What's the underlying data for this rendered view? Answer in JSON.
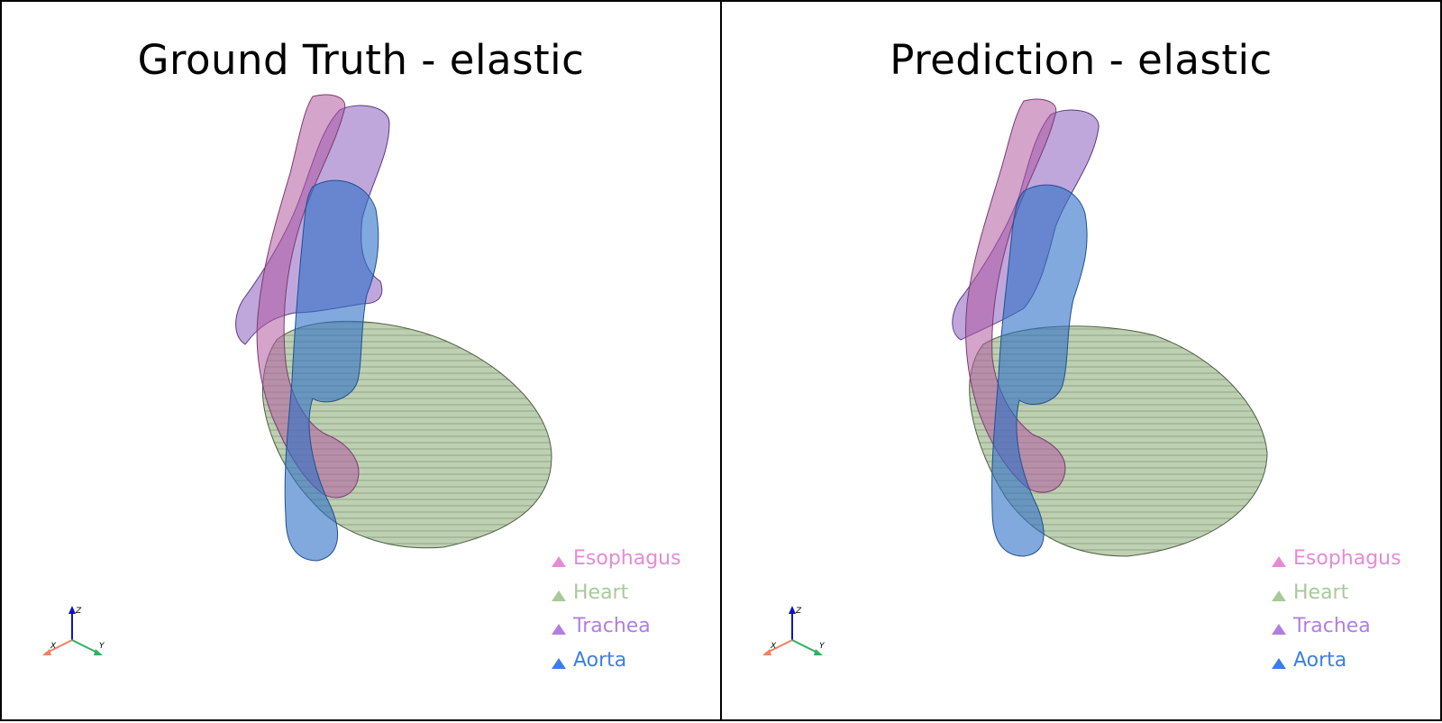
{
  "viewports": [
    {
      "id": "ground-truth",
      "title": "Ground Truth - elastic",
      "legend": [
        {
          "label": "Esophagus",
          "color": "#e58bd6",
          "icon": "triangle-marker"
        },
        {
          "label": "Heart",
          "color": "#a9c99a",
          "icon": "triangle-marker"
        },
        {
          "label": "Trachea",
          "color": "#b07fe0",
          "icon": "triangle-marker"
        },
        {
          "label": "Aorta",
          "color": "#3d7fe0",
          "icon": "triangle-marker"
        }
      ],
      "axes": {
        "x": "X",
        "y": "Y",
        "z": "Z"
      }
    },
    {
      "id": "prediction",
      "title": "Prediction - elastic",
      "legend": [
        {
          "label": "Esophagus",
          "color": "#e58bd6",
          "icon": "triangle-marker"
        },
        {
          "label": "Heart",
          "color": "#a9c99a",
          "icon": "triangle-marker"
        },
        {
          "label": "Trachea",
          "color": "#b07fe0",
          "icon": "triangle-marker"
        },
        {
          "label": "Aorta",
          "color": "#3d7fe0",
          "icon": "triangle-marker"
        }
      ],
      "axes": {
        "x": "X",
        "y": "Y",
        "z": "Z"
      }
    }
  ],
  "colors": {
    "esophagus_fill": "#b05aa0",
    "trachea_fill": "#8a5fc0",
    "aorta_fill": "#2f6fc8",
    "heart_fill": "#93b07f",
    "axis_x": "#f08060",
    "axis_y": "#30b060",
    "axis_z": "#1010d0"
  }
}
